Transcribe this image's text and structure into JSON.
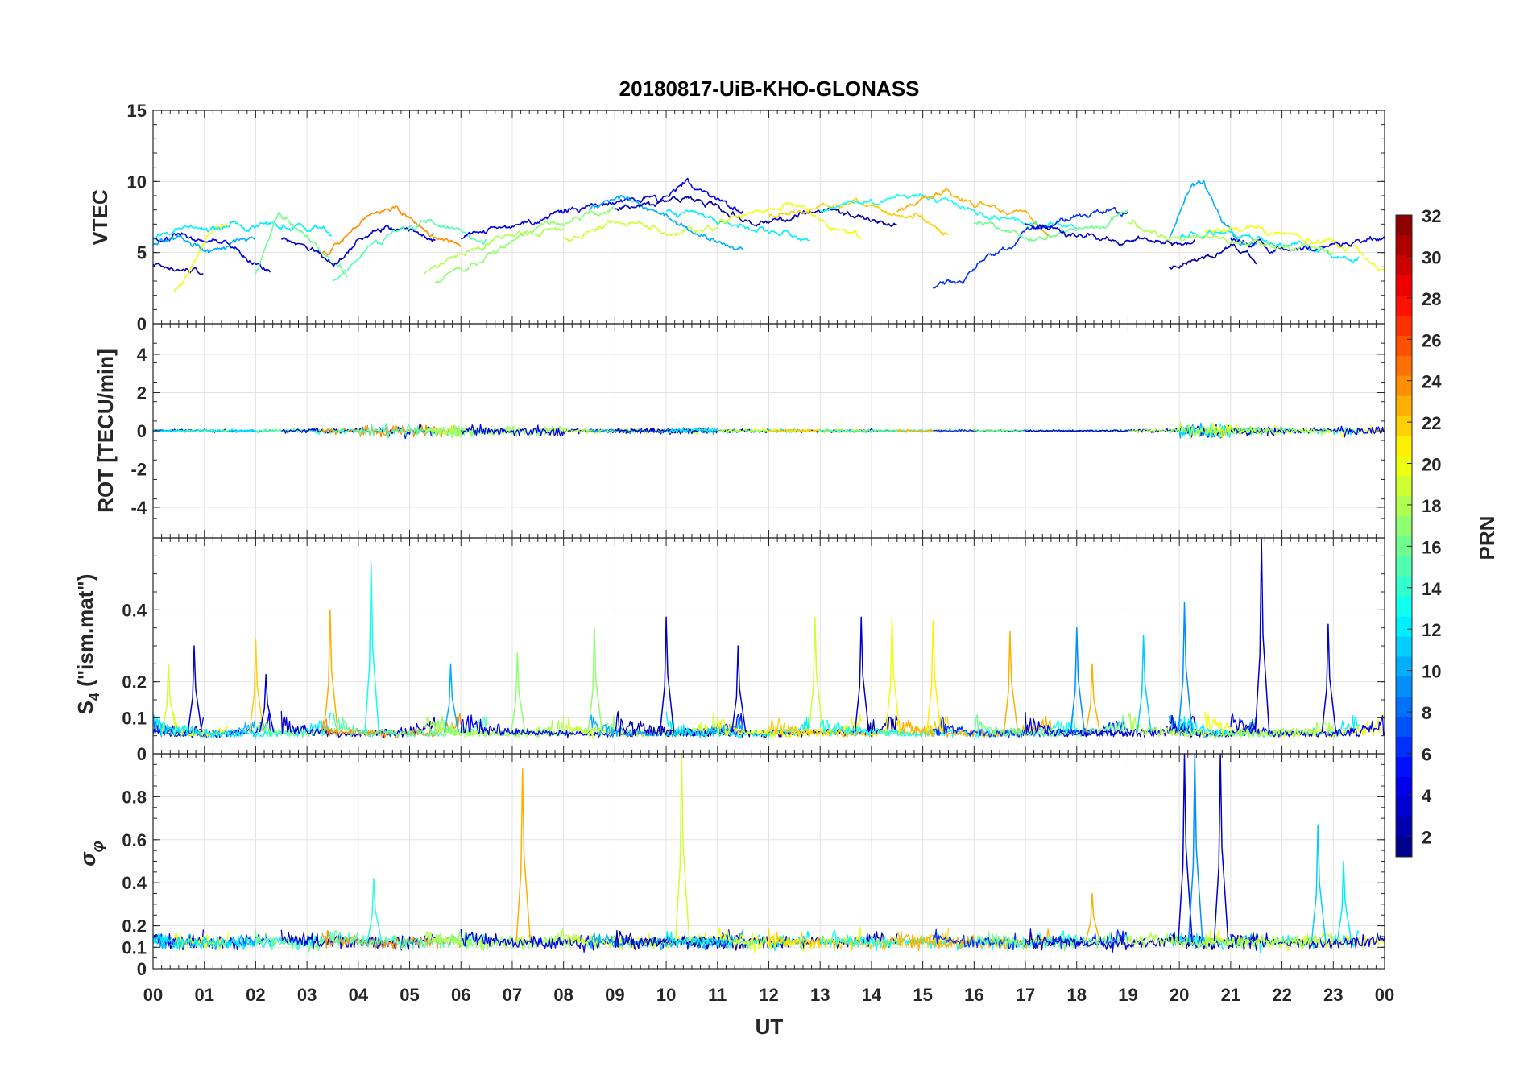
{
  "chart_data": {
    "type": "line",
    "title": "20180817-UiB-KHO-GLONASS",
    "xlabel": "UT",
    "xlim": [
      0,
      24
    ],
    "xtick_labels": [
      "00",
      "01",
      "02",
      "03",
      "04",
      "05",
      "06",
      "07",
      "08",
      "09",
      "10",
      "11",
      "12",
      "13",
      "14",
      "15",
      "16",
      "17",
      "18",
      "19",
      "20",
      "21",
      "22",
      "23",
      "00"
    ],
    "panels": [
      {
        "id": "vtec",
        "ylabel": "VTEC",
        "ylim": [
          0,
          15
        ],
        "ticks": [
          0,
          5,
          10,
          15
        ],
        "tick_labels": [
          "0",
          "5",
          "10",
          "15"
        ]
      },
      {
        "id": "rot",
        "ylabel": "ROT [TECU/min]",
        "ylim": [
          -5.6,
          5.6
        ],
        "ticks": [
          -4,
          -2,
          0,
          2,
          4
        ],
        "tick_labels": [
          "-4",
          "-2",
          "0",
          "2",
          "4"
        ]
      },
      {
        "id": "s4",
        "ylabel_main": "S",
        "ylabel_sub": "4",
        "ylabel_rest": " (\"ism.mat\")",
        "ylim": [
          0,
          0.6
        ],
        "ticks": [
          0,
          0.1,
          0.2,
          0.4
        ],
        "tick_labels": [
          "0",
          "0.1",
          "0.2",
          "0.4"
        ]
      },
      {
        "id": "sigma",
        "ylabel_main": "σ",
        "ylabel_sub": "φ",
        "ylim": [
          0,
          1
        ],
        "ticks": [
          0,
          0.1,
          0.2,
          0.4,
          0.6,
          0.8
        ],
        "tick_labels": [
          "0",
          "0.1",
          "0.2",
          "0.4",
          "0.6",
          "0.8"
        ]
      }
    ],
    "colorbar": {
      "label": "PRN",
      "range": [
        1,
        32
      ],
      "levels": 32,
      "ticks": [
        2,
        4,
        6,
        8,
        10,
        12,
        14,
        16,
        18,
        20,
        22,
        24,
        26,
        28,
        30,
        32
      ],
      "tick_labels": [
        "2",
        "4",
        "6",
        "8",
        "10",
        "12",
        "14",
        "16",
        "18",
        "20",
        "22",
        "24",
        "26",
        "28",
        "30",
        "32"
      ]
    },
    "passes": [
      {
        "prn": 2,
        "start": 0,
        "end": 1,
        "vtec": [
          4.2,
          4,
          3.8,
          3.5
        ]
      },
      {
        "prn": 4,
        "start": 0,
        "end": 2.3,
        "vtec": [
          6,
          6.2,
          5.8,
          5.5,
          4.5,
          3.5
        ]
      },
      {
        "prn": 10,
        "start": 0,
        "end": 2,
        "vtec": [
          5.5,
          5.8,
          5.2,
          5.5,
          6
        ]
      },
      {
        "prn": 20,
        "start": 0.4,
        "end": 1.5,
        "vtec": [
          2.2,
          4,
          6.5,
          7
        ]
      },
      {
        "prn": 12,
        "start": 0,
        "end": 3.5,
        "vtec": [
          6,
          6.5,
          6.8,
          7,
          7,
          6.5
        ]
      },
      {
        "prn": 16,
        "start": 2,
        "end": 3.8,
        "vtec": [
          3.5,
          7.5,
          6.5,
          5,
          3.2
        ]
      },
      {
        "prn": 3,
        "start": 2.5,
        "end": 5.5,
        "vtec": [
          6,
          5.5,
          4,
          6,
          7,
          6.5,
          6
        ]
      },
      {
        "prn": 24,
        "start": 3.3,
        "end": 6,
        "vtec": [
          5,
          6,
          7.5,
          8,
          7,
          6,
          5.8
        ]
      },
      {
        "prn": 15,
        "start": 3.5,
        "end": 6.5,
        "vtec": [
          3,
          5,
          6.5,
          7,
          6.5,
          6
        ]
      },
      {
        "prn": 17,
        "start": 5.5,
        "end": 9,
        "vtec": [
          3,
          3.5,
          5,
          6.5,
          7,
          7.5,
          8
        ]
      },
      {
        "prn": 18,
        "start": 5.3,
        "end": 8,
        "vtec": [
          3.5,
          5,
          6,
          6.5,
          7
        ]
      },
      {
        "prn": 4,
        "start": 6,
        "end": 11.5,
        "vtec": [
          6,
          6.5,
          7,
          7.5,
          8,
          8.5,
          8.8,
          8.5,
          10,
          9,
          8
        ]
      },
      {
        "prn": 19,
        "start": 8,
        "end": 11,
        "vtec": [
          6,
          6.5,
          7,
          6.5,
          6.8
        ]
      },
      {
        "prn": 10,
        "start": 8.5,
        "end": 11.5,
        "vtec": [
          8,
          9,
          8,
          7,
          6,
          5.2
        ]
      },
      {
        "prn": 2,
        "start": 9,
        "end": 14.5,
        "vtec": [
          8,
          8.5,
          9,
          8,
          7,
          7.5,
          8,
          7.5,
          7
        ]
      },
      {
        "prn": 12,
        "start": 10,
        "end": 12.8,
        "vtec": [
          8,
          7.5,
          7,
          6.5,
          6
        ]
      },
      {
        "prn": 20,
        "start": 11,
        "end": 13.8,
        "vtec": [
          7,
          7.5,
          8,
          8.3,
          7,
          6
        ]
      },
      {
        "prn": 22,
        "start": 12,
        "end": 15.5,
        "vtec": [
          7.5,
          8,
          8.5,
          8,
          7.5,
          6.5
        ]
      },
      {
        "prn": 13,
        "start": 13,
        "end": 18,
        "vtec": [
          8,
          8.5,
          9,
          8.5,
          7.5,
          7,
          6.8
        ]
      },
      {
        "prn": 23,
        "start": 14.5,
        "end": 17.5,
        "vtec": [
          8,
          9,
          9.3,
          8.5,
          8,
          7.5,
          6
        ]
      },
      {
        "prn": 6,
        "start": 15.2,
        "end": 19,
        "vtec": [
          2.5,
          3.5,
          5,
          6.5,
          7.5,
          8,
          7.5
        ]
      },
      {
        "prn": 16,
        "start": 16,
        "end": 19,
        "vtec": [
          7,
          6.5,
          6,
          6.5,
          7,
          8
        ]
      },
      {
        "prn": 3,
        "start": 17,
        "end": 20.3,
        "vtec": [
          7,
          6.5,
          6,
          6,
          5.5,
          6
        ]
      },
      {
        "prn": 10,
        "start": 19.8,
        "end": 21.5,
        "vtec": [
          6,
          9,
          10,
          7,
          6,
          5.5
        ]
      },
      {
        "prn": 2,
        "start": 19.8,
        "end": 21.5,
        "vtec": [
          4,
          4.5,
          5,
          5.5,
          4.5
        ]
      },
      {
        "prn": 12,
        "start": 20,
        "end": 23.5,
        "vtec": [
          6,
          6.5,
          6,
          5.5,
          5,
          4.5
        ]
      },
      {
        "prn": 20,
        "start": 20.5,
        "end": 24,
        "vtec": [
          6.5,
          6.8,
          6.5,
          6,
          5.5,
          4
        ]
      },
      {
        "prn": 4,
        "start": 21,
        "end": 24,
        "vtec": [
          6,
          5.5,
          5,
          5.5,
          6,
          6.2
        ]
      },
      {
        "prn": 18,
        "start": 19,
        "end": 23,
        "vtec": [
          7,
          6,
          5.8,
          5.5,
          5
        ]
      }
    ],
    "rot_activity_by_hour": [
      0.3,
      0.3,
      0.4,
      0.6,
      1.2,
      1.2,
      1,
      1,
      0.5,
      0.5,
      0.6,
      0.4,
      0.4,
      0.4,
      0.3,
      0.3,
      0.2,
      0.2,
      0.2,
      0.4,
      1.6,
      1,
      0.6,
      1
    ],
    "s4_spikes": [
      [
        0.3,
        0.25,
        19
      ],
      [
        0.8,
        0.3,
        3
      ],
      [
        2.0,
        0.32,
        22
      ],
      [
        2.2,
        0.22,
        3
      ],
      [
        3.45,
        0.4,
        23
      ],
      [
        4.25,
        0.53,
        13
      ],
      [
        5.8,
        0.25,
        10
      ],
      [
        7.1,
        0.28,
        17
      ],
      [
        8.6,
        0.35,
        17
      ],
      [
        10.0,
        0.38,
        3
      ],
      [
        11.4,
        0.3,
        3
      ],
      [
        12.9,
        0.38,
        19
      ],
      [
        13.8,
        0.38,
        3
      ],
      [
        14.4,
        0.38,
        20
      ],
      [
        15.2,
        0.37,
        21
      ],
      [
        16.7,
        0.34,
        23
      ],
      [
        18.0,
        0.35,
        9
      ],
      [
        18.3,
        0.25,
        23
      ],
      [
        19.3,
        0.33,
        11
      ],
      [
        20.1,
        0.42,
        9
      ],
      [
        21.6,
        0.6,
        3
      ],
      [
        22.9,
        0.36,
        3
      ]
    ],
    "sigma_spikes": [
      [
        4.3,
        0.42,
        14
      ],
      [
        7.2,
        0.93,
        23
      ],
      [
        10.3,
        1.0,
        19
      ],
      [
        20.1,
        1.0,
        3
      ],
      [
        20.3,
        1.0,
        9
      ],
      [
        20.8,
        1.0,
        3
      ],
      [
        22.7,
        0.67,
        11
      ],
      [
        23.2,
        0.5,
        12
      ],
      [
        18.3,
        0.35,
        23
      ]
    ]
  }
}
